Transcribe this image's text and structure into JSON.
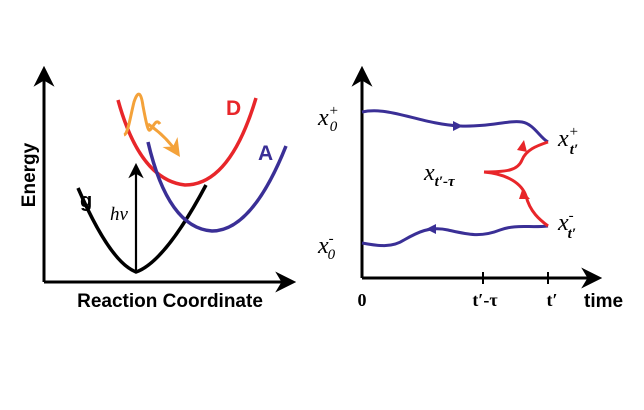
{
  "colors": {
    "axis": "#000000",
    "ground": "#000000",
    "donor": "#e8262a",
    "acceptor": "#3a2f96",
    "wavepacket": "#f4a23a",
    "path_upper": "#3a2f96",
    "path_lower": "#3a2f96",
    "path_middle": "#e8262a"
  },
  "left_panel": {
    "y_axis_label": "Energy",
    "x_axis_label": "Reaction Coordinate",
    "curve_g_label": "g",
    "curve_d_label": "D",
    "curve_a_label": "A",
    "excitation_label": "hν"
  },
  "right_panel": {
    "x_axis_label": "time",
    "ticks": [
      {
        "label": "0"
      },
      {
        "label": "t′-τ"
      },
      {
        "label": "t′"
      }
    ],
    "labels": {
      "x0_plus_base": "x",
      "x0_plus_sub": "0",
      "x0_plus_sup": "+",
      "x0_minus_base": "x",
      "x0_minus_sub": "0",
      "x0_minus_sup": "-",
      "xt_plus_base": "x",
      "xt_plus_sub": "t′",
      "xt_plus_sup": "+",
      "xt_minus_base": "x",
      "xt_minus_sub": "t′",
      "xt_minus_sup": "-",
      "xmid_base": "x",
      "xmid_sub": "t′-τ"
    }
  }
}
